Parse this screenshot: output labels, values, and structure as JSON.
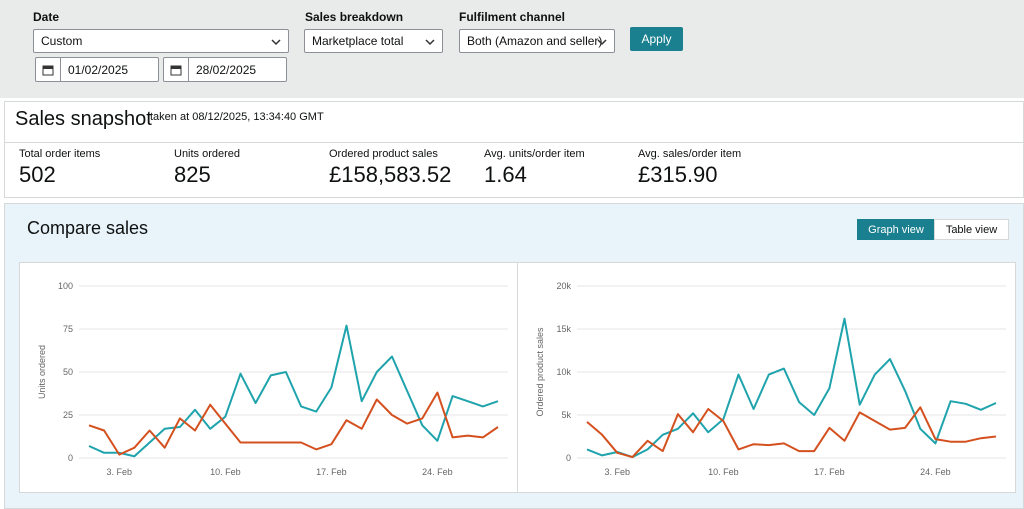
{
  "filters": {
    "date": {
      "label": "Date",
      "selected": "Custom",
      "start": "01/02/2025",
      "end": "28/02/2025"
    },
    "sales_breakdown": {
      "label": "Sales breakdown",
      "selected": "Marketplace total"
    },
    "fulfilment_channel": {
      "label": "Fulfilment channel",
      "selected": "Both (Amazon and seller)"
    },
    "apply": "Apply"
  },
  "snapshot": {
    "title": "Sales snapshot",
    "timestamp": "taken at 08/12/2025, 13:34:40 GMT",
    "metrics": [
      {
        "label": "Total order items",
        "value": "502"
      },
      {
        "label": "Units ordered",
        "value": "825"
      },
      {
        "label": "Ordered product sales",
        "value": "£158,583.52"
      },
      {
        "label": "Avg. units/order item",
        "value": "1.64"
      },
      {
        "label": "Avg. sales/order item",
        "value": "£315.90"
      }
    ]
  },
  "compare": {
    "title": "Compare sales",
    "views": [
      "Graph view",
      "Table view"
    ]
  },
  "chart_data": [
    {
      "type": "line",
      "ylabel": "Units ordered",
      "categories": [
        null,
        null,
        "3. Feb",
        null,
        null,
        null,
        null,
        null,
        null,
        "10. Feb",
        null,
        null,
        null,
        null,
        null,
        null,
        "17. Feb",
        null,
        null,
        null,
        null,
        null,
        null,
        "24. Feb",
        null,
        null,
        null,
        null
      ],
      "series": [
        {
          "color": "#1fa3ac",
          "values": [
            7,
            3,
            3,
            1,
            9,
            17,
            18,
            28,
            17,
            24,
            49,
            32,
            48,
            50,
            30,
            27,
            41,
            77,
            33,
            50,
            59,
            39,
            19,
            10,
            36,
            33,
            30,
            33
          ]
        },
        {
          "color": "#d4501e",
          "values": [
            19,
            16,
            2,
            6,
            16,
            6,
            23,
            16,
            31,
            20,
            9,
            9,
            9,
            9,
            9,
            5,
            8,
            22,
            17,
            34,
            25,
            20,
            23,
            38,
            12,
            13,
            12,
            18
          ]
        }
      ],
      "ylim": [
        0,
        100
      ],
      "yticks": [
        0,
        25,
        50,
        75,
        100
      ],
      "grid": true
    },
    {
      "type": "line",
      "ylabel": "Ordered product sales",
      "categories": [
        null,
        null,
        "3. Feb",
        null,
        null,
        null,
        null,
        null,
        null,
        "10. Feb",
        null,
        null,
        null,
        null,
        null,
        null,
        "17. Feb",
        null,
        null,
        null,
        null,
        null,
        null,
        "24. Feb",
        null,
        null,
        null,
        null
      ],
      "series": [
        {
          "color": "#1fa3ac",
          "values": [
            1000,
            300,
            700,
            100,
            1000,
            2700,
            3400,
            5200,
            3000,
            4500,
            9700,
            5700,
            9700,
            10400,
            6500,
            5000,
            8100,
            16200,
            6200,
            9700,
            11500,
            7800,
            3400,
            1700,
            6600,
            6300,
            5600,
            6400
          ]
        },
        {
          "color": "#d4501e",
          "values": [
            4200,
            2700,
            600,
            100,
            2000,
            800,
            5100,
            3000,
            5700,
            4300,
            1000,
            1600,
            1500,
            1700,
            800,
            800,
            3500,
            2000,
            5300,
            4300,
            3300,
            3500,
            5900,
            2200,
            1900,
            1900,
            2300,
            2500
          ]
        }
      ],
      "ylim": [
        0,
        20000
      ],
      "yticks": [
        0,
        {
          "value": 5000,
          "label": "5k"
        },
        {
          "value": 10000,
          "label": "10k"
        },
        {
          "value": 15000,
          "label": "15k"
        },
        {
          "value": 20000,
          "label": "20k"
        }
      ],
      "grid": true
    }
  ]
}
